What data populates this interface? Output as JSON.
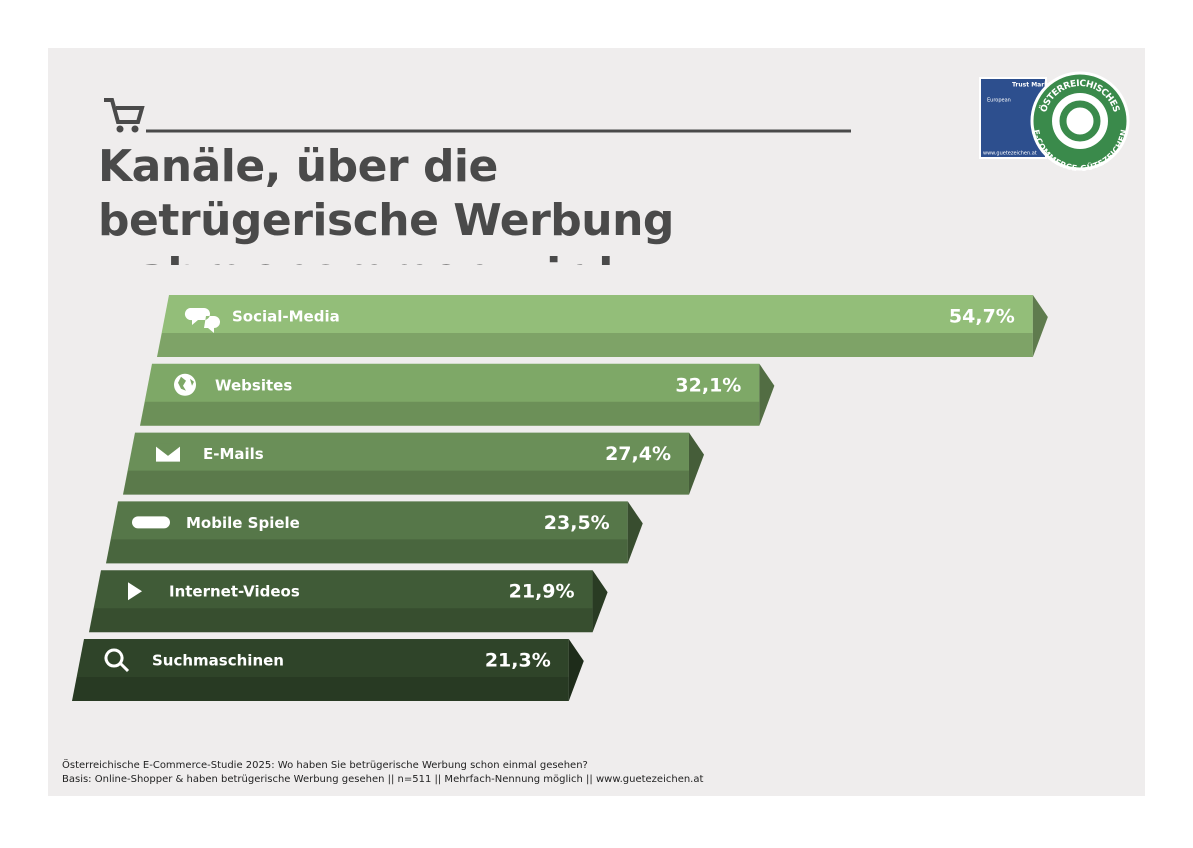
{
  "chart_data": {
    "type": "bar",
    "title": "Kanäle, über die betrügerische Werbung wahrgenommen wird",
    "categories": [
      "Social-Media",
      "Websites",
      "E-Mails",
      "Mobile Spiele",
      "Internet-Videos",
      "Suchmaschinen"
    ],
    "values": [
      54.7,
      32.1,
      27.4,
      23.5,
      21.9,
      21.3
    ],
    "value_labels": [
      "54,7%",
      "32,1%",
      "27,4%",
      "23,5%",
      "21,9%",
      "21,3%"
    ],
    "colors": [
      "#93be79",
      "#7ea867",
      "#6a8f58",
      "#567749",
      "#405b37",
      "#2f4429"
    ],
    "notes": [
      "Österreichische E-Commerce-Studie 2025: Wo haben Sie betrügerische Werbung schon einmal gesehen?",
      "Basis: Online-Shopper & haben betrügerische Werbung gesehen || n=511 || Mehrfach-Nennung möglich || www.guetezeichen.at"
    ],
    "logo": {
      "trust_mark": "Trust Mark",
      "european": "European",
      "url": "www.guetezeichen.at",
      "badge_top": "ÖSTERREICHISCHES",
      "badge_bottom": "E-COMMERCE-GÜTEZEICHEN"
    }
  }
}
